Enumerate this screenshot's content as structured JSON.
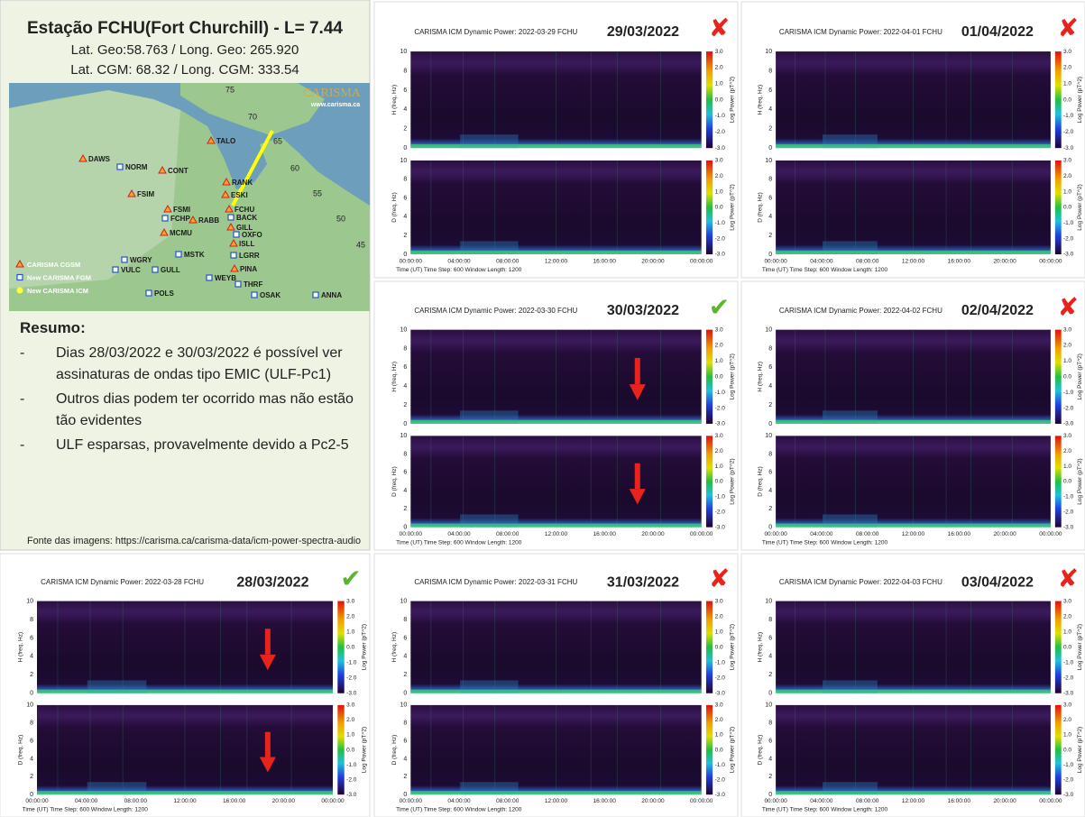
{
  "station": {
    "title": "Estação FCHU(Fort Churchill) - L= 7.44",
    "geo": "Lat. Geo:58.763 / Long. Geo: 265.920",
    "cgm": "Lat. CGM: 68.32 / Long. CGM: 333.54"
  },
  "map": {
    "brand": "CARISMA",
    "url": "www.carisma.ca",
    "latitudes": [
      "75",
      "70",
      "65",
      "60",
      "55",
      "50",
      "45"
    ],
    "legend": [
      "CARISMA CGSM",
      "New CARISMA FGM",
      "New CARISMA ICM"
    ],
    "stations": [
      {
        "name": "DAWS",
        "kind": 0
      },
      {
        "name": "NORM",
        "kind": 1
      },
      {
        "name": "CONT",
        "kind": 0
      },
      {
        "name": "TALO",
        "kind": 0
      },
      {
        "name": "FSIM",
        "kind": 0
      },
      {
        "name": "RANK",
        "kind": 0
      },
      {
        "name": "ESKI",
        "kind": 0
      },
      {
        "name": "FSMI",
        "kind": 0
      },
      {
        "name": "FCHU",
        "kind": 0
      },
      {
        "name": "FCHP",
        "kind": 1
      },
      {
        "name": "RABB",
        "kind": 0
      },
      {
        "name": "BACK",
        "kind": 1
      },
      {
        "name": "GILL",
        "kind": 0
      },
      {
        "name": "MCMU",
        "kind": 0
      },
      {
        "name": "OXFO",
        "kind": 1
      },
      {
        "name": "ISLL",
        "kind": 0
      },
      {
        "name": "MSTK",
        "kind": 1
      },
      {
        "name": "LGRR",
        "kind": 1
      },
      {
        "name": "WGRY",
        "kind": 1
      },
      {
        "name": "VULC",
        "kind": 1
      },
      {
        "name": "GULL",
        "kind": 1
      },
      {
        "name": "WEYB",
        "kind": 1
      },
      {
        "name": "PINA",
        "kind": 0
      },
      {
        "name": "THRF",
        "kind": 1
      },
      {
        "name": "POLS",
        "kind": 1
      },
      {
        "name": "OSAK",
        "kind": 1
      },
      {
        "name": "ANNA",
        "kind": 1
      }
    ]
  },
  "summary": {
    "heading": "Resumo:",
    "items": [
      "Dias 28/03/2022 e 30/03/2022 é possível ver assinaturas de ondas tipo EMIC (ULF-Pc1)",
      "Outros dias podem ter ocorrido mas não estão tão evidentes",
      "ULF esparsas, provavelmente devido a Pc2-5"
    ]
  },
  "source": "Fonte das imagens: https://carisma.ca/carisma-data/icm-power-spectra-audio",
  "axes": {
    "yticks": [
      "0",
      "2",
      "4",
      "6",
      "8",
      "10"
    ],
    "h_label": "H (freq, Hz)",
    "d_label": "D (freq, Hz)",
    "cbticks": [
      "3.0",
      "2.0",
      "1.0",
      "0.0",
      "-1.0",
      "-2.0",
      "-3.0"
    ],
    "cb_label": "Log Power (pT^2)",
    "xticks": [
      "00:00:00",
      "04:00:00",
      "08:00:00",
      "12:00:00",
      "16:00:00",
      "20:00:00",
      "00:00:00"
    ],
    "footer": "Time (UT) Time Step: 600   Window Length: 1200"
  },
  "panels": [
    {
      "title": "CARISMA ICM Dynamic Power: 2022-03-29 FCHU",
      "date": "29/03/2022",
      "status": {
        "symbol": "✘",
        "color": "#e8231c"
      }
    },
    {
      "title": "CARISMA ICM Dynamic Power: 2022-04-01 FCHU",
      "date": "01/04/2022",
      "status": {
        "symbol": "✘",
        "color": "#e8231c"
      }
    },
    {
      "title": "CARISMA ICM Dynamic Power: 2022-03-30 FCHU",
      "date": "30/03/2022",
      "status": {
        "symbol": "✔",
        "color": "#5cb531"
      }
    },
    {
      "title": "CARISMA ICM Dynamic Power: 2022-04-02 FCHU",
      "date": "02/04/2022",
      "status": {
        "symbol": "✘",
        "color": "#e8231c"
      }
    },
    {
      "title": "CARISMA ICM Dynamic Power: 2022-03-28 FCHU",
      "date": "28/03/2022",
      "status": {
        "symbol": "✔",
        "color": "#5cb531"
      }
    },
    {
      "title": "CARISMA ICM Dynamic Power: 2022-03-31 FCHU",
      "date": "31/03/2022",
      "status": {
        "symbol": "✘",
        "color": "#e8231c"
      }
    },
    {
      "title": "CARISMA ICM Dynamic Power: 2022-04-03 FCHU",
      "date": "03/04/2022",
      "status": {
        "symbol": "✘",
        "color": "#e8231c"
      }
    }
  ]
}
